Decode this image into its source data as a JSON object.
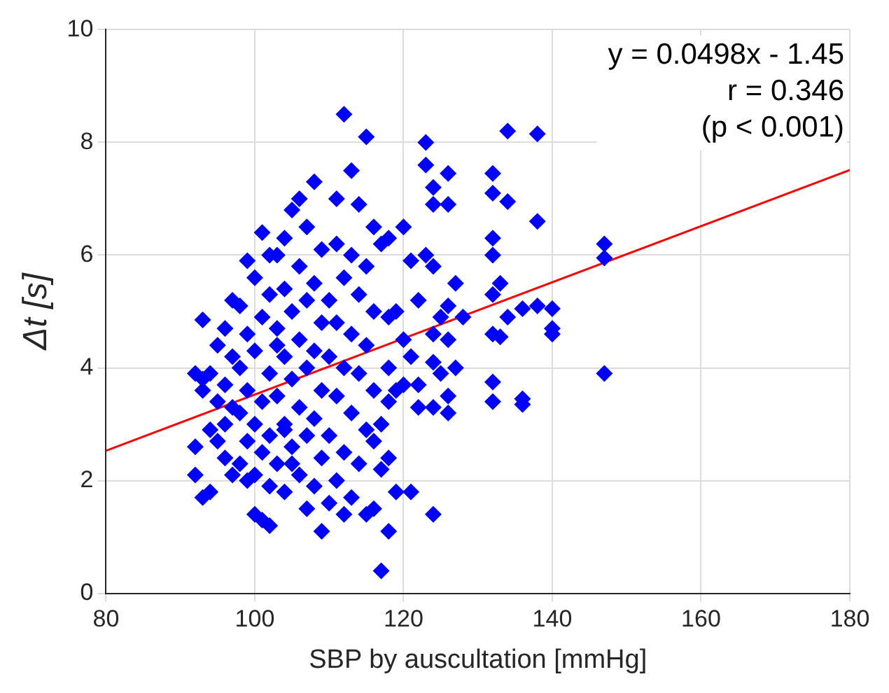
{
  "chart_data": {
    "type": "scatter",
    "xlabel": "SBP by auscultation [mmHg]",
    "ylabel": "Δt [s]",
    "annotations": [
      "y = 0.0498x - 1.45",
      "r = 0.346",
      "(p < 0.001)"
    ],
    "xlim": [
      80,
      180
    ],
    "xticks": [
      80,
      100,
      120,
      140,
      160,
      180
    ],
    "ylim": [
      0,
      10
    ],
    "yticks": [
      0,
      2,
      4,
      6,
      8,
      10
    ],
    "grid": true,
    "marker": "diamond",
    "series": [
      {
        "color": "#0000ff",
        "x": [
          147,
          147,
          147,
          140,
          140,
          140,
          138,
          138,
          138,
          136,
          134,
          134,
          136,
          136,
          133,
          132,
          132,
          132,
          132,
          132,
          133,
          132,
          132,
          132,
          134,
          123,
          123,
          124,
          126,
          124,
          126,
          127,
          126,
          124,
          123,
          125,
          124,
          126,
          124,
          125,
          126,
          126,
          124,
          128,
          124,
          127,
          118,
          117,
          120,
          121,
          122,
          119,
          118,
          120,
          121,
          118,
          119,
          120,
          122,
          117,
          118,
          117,
          119,
          121,
          117,
          118,
          116,
          115,
          122,
          118,
          112,
          115,
          113,
          111,
          114,
          116,
          111,
          113,
          115,
          112,
          110,
          114,
          116,
          111,
          113,
          115,
          110,
          112,
          114,
          116,
          111,
          113,
          115,
          110,
          112,
          114,
          111,
          113,
          110,
          109,
          112,
          116,
          108,
          106,
          105,
          107,
          104,
          109,
          103,
          106,
          108,
          104,
          107,
          105,
          109,
          103,
          106,
          108,
          104,
          107,
          105,
          109,
          103,
          106,
          108,
          104,
          107,
          105,
          109,
          103,
          106,
          108,
          104,
          107,
          105,
          104,
          101,
          102,
          99,
          100,
          102,
          98,
          101,
          99,
          103,
          100,
          98,
          102,
          99,
          101,
          98,
          100,
          102,
          99,
          101,
          98,
          100,
          102,
          100,
          101,
          102,
          99,
          97,
          96,
          95,
          97,
          94,
          96,
          93,
          95,
          92,
          93,
          97,
          96,
          94,
          92,
          92,
          93,
          94,
          96,
          97,
          93,
          95
        ],
        "values": [
          6.2,
          5.95,
          3.9,
          5.05,
          4.7,
          4.6,
          8.15,
          6.6,
          5.1,
          5.05,
          8.2,
          6.95,
          3.45,
          3.35,
          4.55,
          7.45,
          7.1,
          6.3,
          6.0,
          5.3,
          5.5,
          4.6,
          3.75,
          3.4,
          4.9,
          8.0,
          7.6,
          7.2,
          7.45,
          6.9,
          6.9,
          5.5,
          5.1,
          5.8,
          6.0,
          4.9,
          4.6,
          4.5,
          4.1,
          3.9,
          3.5,
          3.2,
          3.3,
          4.9,
          1.4,
          4.0,
          6.3,
          6.2,
          6.5,
          5.9,
          5.2,
          5.0,
          4.9,
          4.5,
          4.2,
          4.0,
          3.6,
          3.7,
          3.7,
          3.0,
          2.4,
          2.2,
          1.8,
          1.8,
          0.4,
          1.1,
          1.5,
          1.4,
          3.3,
          3.4,
          8.5,
          8.1,
          7.5,
          7.0,
          6.9,
          6.5,
          6.2,
          6.0,
          5.8,
          5.6,
          5.2,
          5.3,
          5.0,
          4.8,
          4.6,
          4.4,
          4.2,
          4.0,
          3.9,
          3.6,
          3.5,
          3.2,
          2.9,
          2.8,
          2.5,
          2.3,
          2.0,
          1.7,
          1.6,
          1.1,
          1.4,
          2.7,
          7.3,
          7.0,
          6.8,
          6.5,
          6.3,
          6.1,
          6.0,
          5.8,
          5.5,
          5.4,
          5.2,
          5.0,
          4.8,
          4.7,
          4.5,
          4.3,
          4.2,
          4.0,
          3.8,
          3.6,
          3.5,
          3.3,
          3.1,
          3.0,
          2.8,
          2.6,
          2.4,
          2.3,
          2.1,
          1.9,
          1.8,
          1.5,
          2.3,
          2.9,
          6.4,
          6.0,
          5.9,
          5.6,
          5.3,
          5.1,
          4.9,
          4.6,
          4.4,
          4.3,
          4.0,
          3.9,
          3.6,
          3.4,
          3.2,
          3.0,
          2.8,
          2.7,
          2.5,
          2.3,
          2.1,
          1.9,
          1.4,
          1.3,
          1.2,
          2.0,
          5.2,
          4.7,
          4.4,
          4.2,
          3.9,
          3.7,
          3.6,
          3.4,
          3.9,
          3.8,
          3.3,
          3.0,
          2.9,
          2.6,
          2.1,
          4.85,
          1.8,
          2.4,
          2.1,
          1.7,
          2.7
        ]
      },
      {
        "type": "line",
        "color": "#ff0000",
        "x": [
          80,
          180
        ],
        "values": [
          2.53,
          7.51
        ],
        "marker": "none"
      }
    ]
  }
}
